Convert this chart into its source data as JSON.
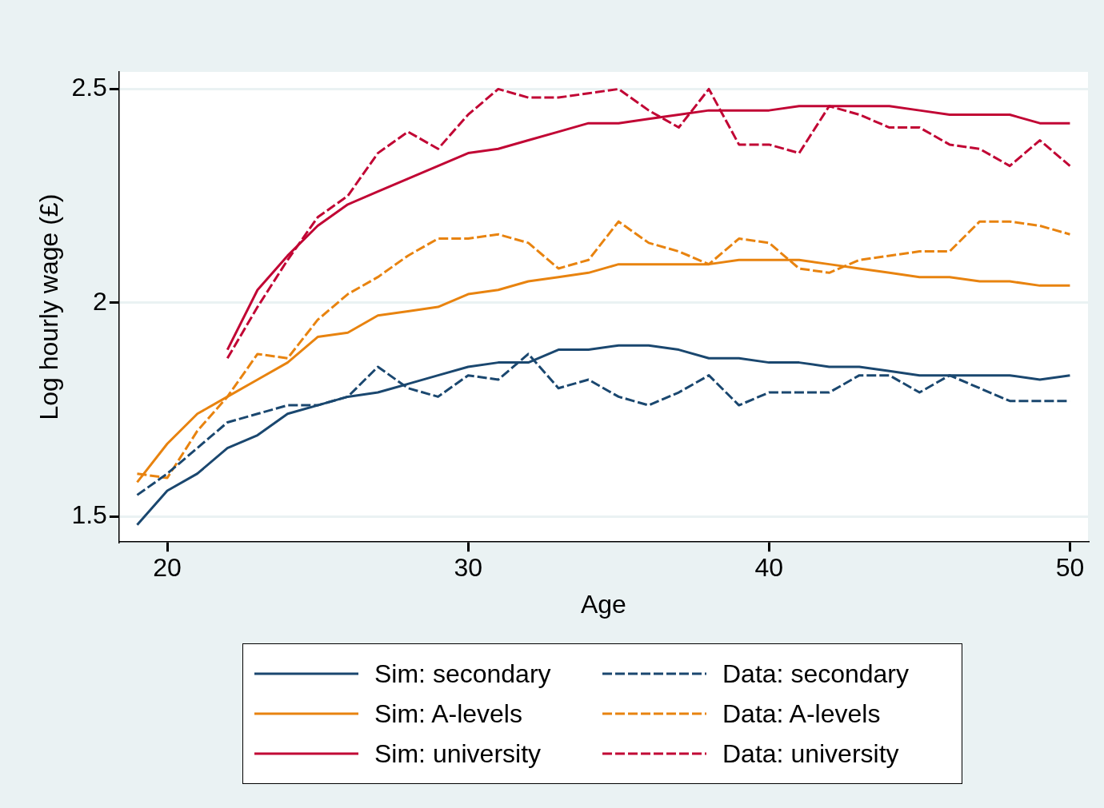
{
  "chart_data": {
    "type": "line",
    "xlabel": "Age",
    "ylabel": "Log hourly wage (£)",
    "x": [
      19,
      20,
      21,
      22,
      23,
      24,
      25,
      26,
      27,
      28,
      29,
      30,
      31,
      32,
      33,
      34,
      35,
      36,
      37,
      38,
      39,
      40,
      41,
      42,
      43,
      44,
      45,
      46,
      47,
      48,
      49,
      50
    ],
    "xlim": [
      18.4,
      50.6
    ],
    "xticks": [
      20,
      30,
      40,
      50
    ],
    "ylim": [
      1.44,
      2.54
    ],
    "yticks": [
      1.5,
      2,
      2.5
    ],
    "grid": "y",
    "legend": "bottom",
    "marker": "none",
    "series": [
      {
        "name": "Sim: secondary",
        "color": "#1a476f",
        "line_style": "solid",
        "values": [
          1.48,
          1.56,
          1.6,
          1.66,
          1.69,
          1.74,
          1.76,
          1.78,
          1.79,
          1.81,
          1.83,
          1.85,
          1.86,
          1.86,
          1.89,
          1.89,
          1.9,
          1.9,
          1.89,
          1.87,
          1.87,
          1.86,
          1.86,
          1.85,
          1.85,
          1.84,
          1.83,
          1.83,
          1.83,
          1.83,
          1.82,
          1.83
        ]
      },
      {
        "name": "Data: secondary",
        "color": "#1a476f",
        "line_style": "dashed",
        "values": [
          1.55,
          1.6,
          1.66,
          1.72,
          1.74,
          1.76,
          1.76,
          1.78,
          1.85,
          1.8,
          1.78,
          1.83,
          1.82,
          1.88,
          1.8,
          1.82,
          1.78,
          1.76,
          1.79,
          1.83,
          1.76,
          1.79,
          1.79,
          1.79,
          1.83,
          1.83,
          1.79,
          1.83,
          1.8,
          1.77,
          1.77,
          1.77
        ]
      },
      {
        "name": "Sim: A-levels",
        "color": "#e8830f",
        "line_style": "solid",
        "values": [
          1.58,
          1.67,
          1.74,
          1.78,
          1.82,
          1.86,
          1.92,
          1.93,
          1.97,
          1.98,
          1.99,
          2.02,
          2.03,
          2.05,
          2.06,
          2.07,
          2.09,
          2.09,
          2.09,
          2.09,
          2.1,
          2.1,
          2.1,
          2.09,
          2.08,
          2.07,
          2.06,
          2.06,
          2.05,
          2.05,
          2.04,
          2.04
        ]
      },
      {
        "name": "Data: A-levels",
        "color": "#e8830f",
        "line_style": "dashed",
        "values": [
          1.6,
          1.59,
          1.7,
          1.78,
          1.88,
          1.87,
          1.96,
          2.02,
          2.06,
          2.11,
          2.15,
          2.15,
          2.16,
          2.14,
          2.08,
          2.1,
          2.19,
          2.14,
          2.12,
          2.09,
          2.15,
          2.14,
          2.08,
          2.07,
          2.1,
          2.11,
          2.12,
          2.12,
          2.19,
          2.19,
          2.18,
          2.16
        ]
      },
      {
        "name": "Sim: university",
        "color": "#c10534",
        "line_style": "solid",
        "x": [
          22,
          23,
          24,
          25,
          26,
          27,
          28,
          29,
          30,
          31,
          32,
          33,
          34,
          35,
          36,
          37,
          38,
          39,
          40,
          41,
          42,
          43,
          44,
          45,
          46,
          47,
          48,
          49,
          50
        ],
        "values": [
          1.89,
          2.03,
          2.11,
          2.18,
          2.23,
          2.26,
          2.29,
          2.32,
          2.35,
          2.36,
          2.38,
          2.4,
          2.42,
          2.42,
          2.43,
          2.44,
          2.45,
          2.45,
          2.45,
          2.46,
          2.46,
          2.46,
          2.46,
          2.45,
          2.44,
          2.44,
          2.44,
          2.42,
          2.42
        ]
      },
      {
        "name": "Data: university",
        "color": "#c10534",
        "line_style": "dashed",
        "x": [
          22,
          23,
          24,
          25,
          26,
          27,
          28,
          29,
          30,
          31,
          32,
          33,
          34,
          35,
          36,
          37,
          38,
          39,
          40,
          41,
          42,
          43,
          44,
          45,
          46,
          47,
          48,
          49,
          50
        ],
        "values": [
          1.87,
          1.99,
          2.1,
          2.2,
          2.25,
          2.35,
          2.4,
          2.36,
          2.44,
          2.5,
          2.48,
          2.48,
          2.49,
          2.5,
          2.45,
          2.41,
          2.5,
          2.37,
          2.37,
          2.35,
          2.46,
          2.44,
          2.41,
          2.41,
          2.37,
          2.36,
          2.32,
          2.38,
          2.32
        ]
      }
    ]
  }
}
